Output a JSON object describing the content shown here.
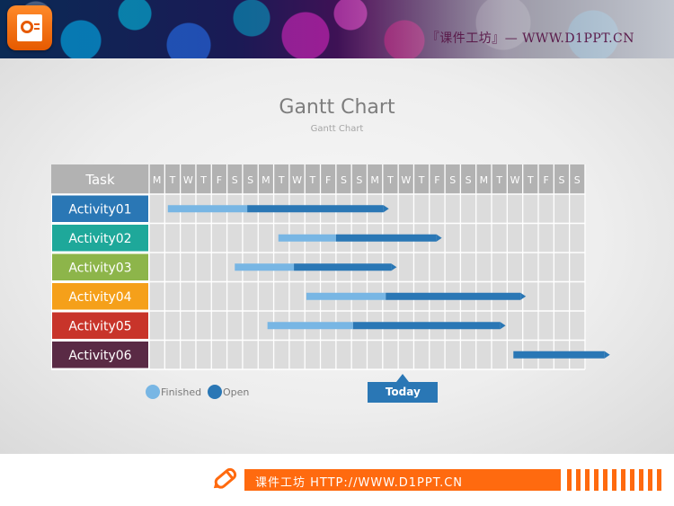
{
  "header": {
    "site_text": "『课件工坊』— WWW.D1PPT.CN",
    "icon": "powerpoint-icon"
  },
  "title": "Gantt Chart",
  "subtitle": "Gantt Chart",
  "chart_data": {
    "type": "gantt",
    "task_header": "Task",
    "days": [
      "M",
      "T",
      "W",
      "T",
      "F",
      "S",
      "S",
      "M",
      "T",
      "W",
      "T",
      "F",
      "S",
      "S",
      "M",
      "T",
      "W",
      "T",
      "F",
      "S",
      "S",
      "M",
      "T",
      "W",
      "T",
      "F",
      "S",
      "S"
    ],
    "tasks": [
      {
        "name": "Activity01",
        "color": "#2a77b5",
        "start": 1.2,
        "split": 6.3,
        "end": 15.4
      },
      {
        "name": "Activity02",
        "color": "#1ea89a",
        "start": 8.3,
        "split": 12.0,
        "end": 18.8
      },
      {
        "name": "Activity03",
        "color": "#8db54a",
        "start": 5.5,
        "split": 9.3,
        "end": 15.9
      },
      {
        "name": "Activity04",
        "color": "#f5a01a",
        "start": 10.1,
        "split": 15.2,
        "end": 24.2
      },
      {
        "name": "Activity05",
        "color": "#c8342a",
        "start": 7.6,
        "split": 13.1,
        "end": 22.9
      },
      {
        "name": "Activity06",
        "color": "#5a2a45",
        "start": 23.4,
        "split": 23.4,
        "end": 29.6
      }
    ],
    "finished_color": "#78b6e4",
    "open_color": "#2a77b5",
    "today": 16.3,
    "legend": [
      {
        "label": "Finished",
        "color": "#78b6e4"
      },
      {
        "label": "Open",
        "color": "#2a77b5"
      }
    ],
    "today_label": "Today"
  },
  "footer": {
    "text": "课件工坊 HTTP://WWW.D1PPT.CN",
    "icon": "pencil-icon",
    "accent": "#ff6a0f"
  }
}
